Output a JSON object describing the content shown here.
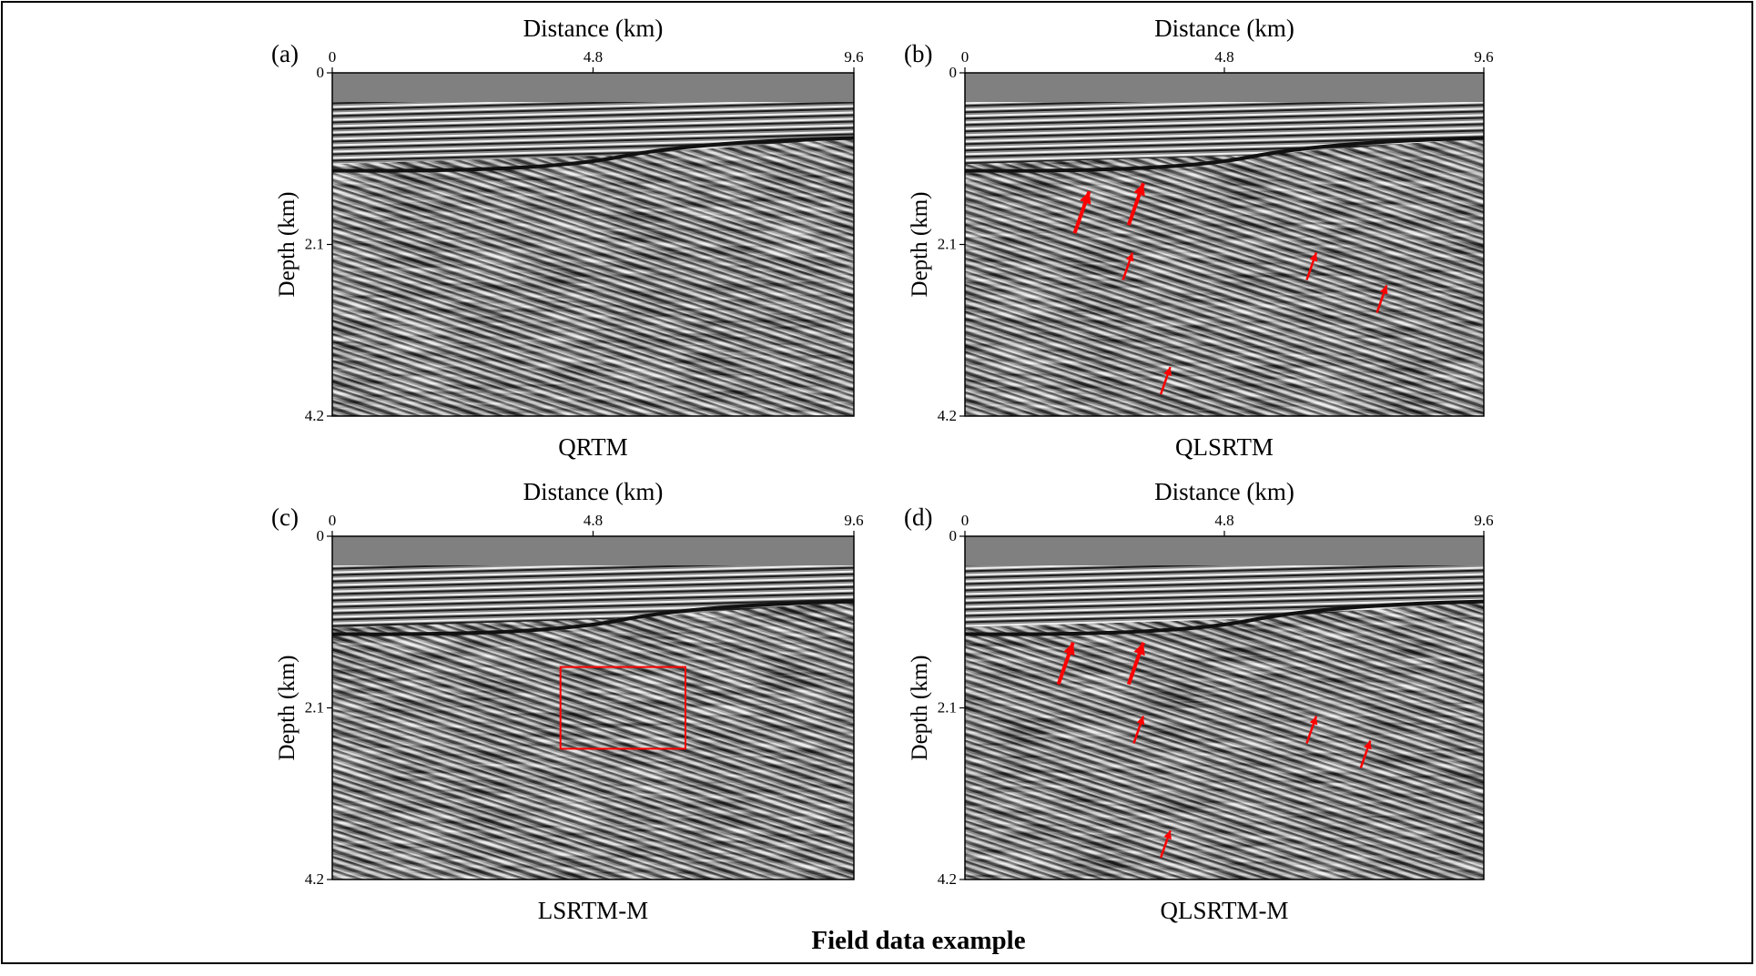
{
  "figure": {
    "caption": "Field data example",
    "axis_x_label": "Distance (km)",
    "axis_y_label": "Depth (km)",
    "x_ticks": [
      "0",
      "4.8",
      "9.6"
    ],
    "y_ticks": [
      "0",
      "2.1",
      "4.2"
    ],
    "panels": [
      {
        "letter": "(a)",
        "title": "QRTM",
        "arrows": []
      },
      {
        "letter": "(b)",
        "title": "QLSRTM",
        "arrows": [
          {
            "x_km": 2.3,
            "z_km": 1.45,
            "bold": true
          },
          {
            "x_km": 3.3,
            "z_km": 1.35,
            "bold": true
          },
          {
            "x_km": 3.1,
            "z_km": 2.2,
            "bold": false
          },
          {
            "x_km": 6.5,
            "z_km": 2.2,
            "bold": false
          },
          {
            "x_km": 7.8,
            "z_km": 2.6,
            "bold": false
          },
          {
            "x_km": 3.8,
            "z_km": 3.6,
            "bold": false
          }
        ]
      },
      {
        "letter": "(c)",
        "title": "LSRTM-M",
        "arrows": [],
        "box_km": {
          "x0": 4.2,
          "x1": 6.5,
          "z0": 1.6,
          "z1": 2.6
        }
      },
      {
        "letter": "(d)",
        "title": "QLSRTM-M",
        "arrows": [
          {
            "x_km": 2.0,
            "z_km": 1.3,
            "bold": true
          },
          {
            "x_km": 3.3,
            "z_km": 1.3,
            "bold": true
          },
          {
            "x_km": 3.3,
            "z_km": 2.2,
            "bold": false
          },
          {
            "x_km": 6.5,
            "z_km": 2.2,
            "bold": false
          },
          {
            "x_km": 7.5,
            "z_km": 2.5,
            "bold": false
          },
          {
            "x_km": 3.8,
            "z_km": 3.6,
            "bold": false
          }
        ]
      }
    ],
    "colors": {
      "arrow": "#ff0000",
      "box": "#ff0000",
      "water": "#808080"
    }
  }
}
